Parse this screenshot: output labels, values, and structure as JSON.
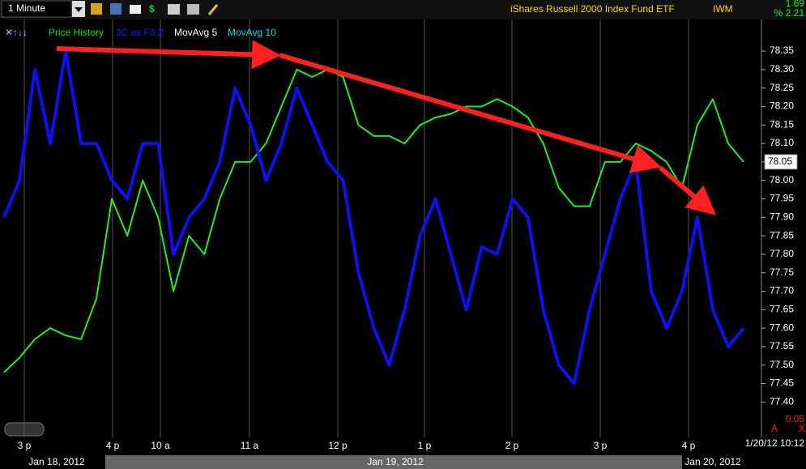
{
  "toolbar": {
    "interval": "1 Minute",
    "title": "iShares Russell 2000 Index Fund ETF",
    "symbol": "IWM",
    "change": "1.69",
    "change_pct": "% 2.21"
  },
  "chart_data": {
    "type": "line",
    "legend": [
      "Price History",
      "3C as F3.2",
      "MovAvg 5",
      "MovAvg 10"
    ],
    "legend_colors": [
      "#00e000",
      "#1a1aff",
      "#ffffff",
      "#00d8e0"
    ],
    "series": [
      {
        "name": "Price History",
        "color": "#22ee22",
        "values": [
          77.48,
          77.52,
          77.57,
          77.6,
          77.58,
          77.57,
          77.68,
          77.95,
          77.85,
          78.0,
          77.9,
          77.7,
          77.85,
          77.8,
          77.95,
          78.05,
          78.05,
          78.1,
          78.2,
          78.3,
          78.28,
          78.3,
          78.28,
          78.15,
          78.12,
          78.12,
          78.1,
          78.15,
          78.17,
          78.18,
          78.2,
          78.2,
          78.22,
          78.2,
          78.17,
          78.1,
          77.98,
          77.93,
          77.93,
          78.05,
          78.05,
          78.1,
          78.08,
          78.05,
          77.98,
          78.15,
          78.22,
          78.1,
          78.05
        ]
      },
      {
        "name": "3C as F3.2",
        "color": "#1010ee",
        "values": [
          77.9,
          78.0,
          78.3,
          78.1,
          78.35,
          78.1,
          78.1,
          78.0,
          77.95,
          78.1,
          78.1,
          77.8,
          77.9,
          77.95,
          78.05,
          78.25,
          78.15,
          78.0,
          78.1,
          78.25,
          78.15,
          78.05,
          78.0,
          77.75,
          77.6,
          77.5,
          77.65,
          77.85,
          77.95,
          77.8,
          77.65,
          77.82,
          77.8,
          77.95,
          77.9,
          77.65,
          77.5,
          77.45,
          77.65,
          77.8,
          77.95,
          78.05,
          77.7,
          77.6,
          77.7,
          77.9,
          77.65,
          77.55,
          77.6
        ]
      }
    ],
    "ylim": [
      77.37,
      78.44
    ],
    "yticks": [
      {
        "value": 77.4,
        "label": "77.40"
      },
      77.45,
      {
        "value": 77.5,
        "label": "77.50"
      },
      77.55,
      {
        "value": 77.6,
        "label": "77.60"
      },
      77.65,
      {
        "value": 77.7,
        "label": "77.70"
      },
      77.75,
      {
        "value": 77.8,
        "label": "77.80"
      },
      77.85,
      {
        "value": 77.9,
        "label": "77.90"
      },
      77.95,
      {
        "value": 78.0,
        "label": "78.00"
      },
      78.05,
      {
        "value": 78.1,
        "label": "78.10"
      },
      78.15,
      {
        "value": 78.2,
        "label": "78.20"
      },
      78.25,
      {
        "value": 78.3,
        "label": "78.30"
      },
      78.35
    ],
    "last_price": 78.05,
    "time_labels": [
      "3 p",
      "4 p",
      "10 a",
      "11 a",
      "12 p",
      "1 p",
      "2 p",
      "3 p",
      "4 p"
    ],
    "date_labels": [
      "Jan 18, 2012",
      "Jan 19, 2012",
      "Jan 20, 2012"
    ],
    "scale_step": 0.05,
    "timestamp": "1/20/12 10:12",
    "corner_icons": [
      "A",
      "X"
    ]
  }
}
